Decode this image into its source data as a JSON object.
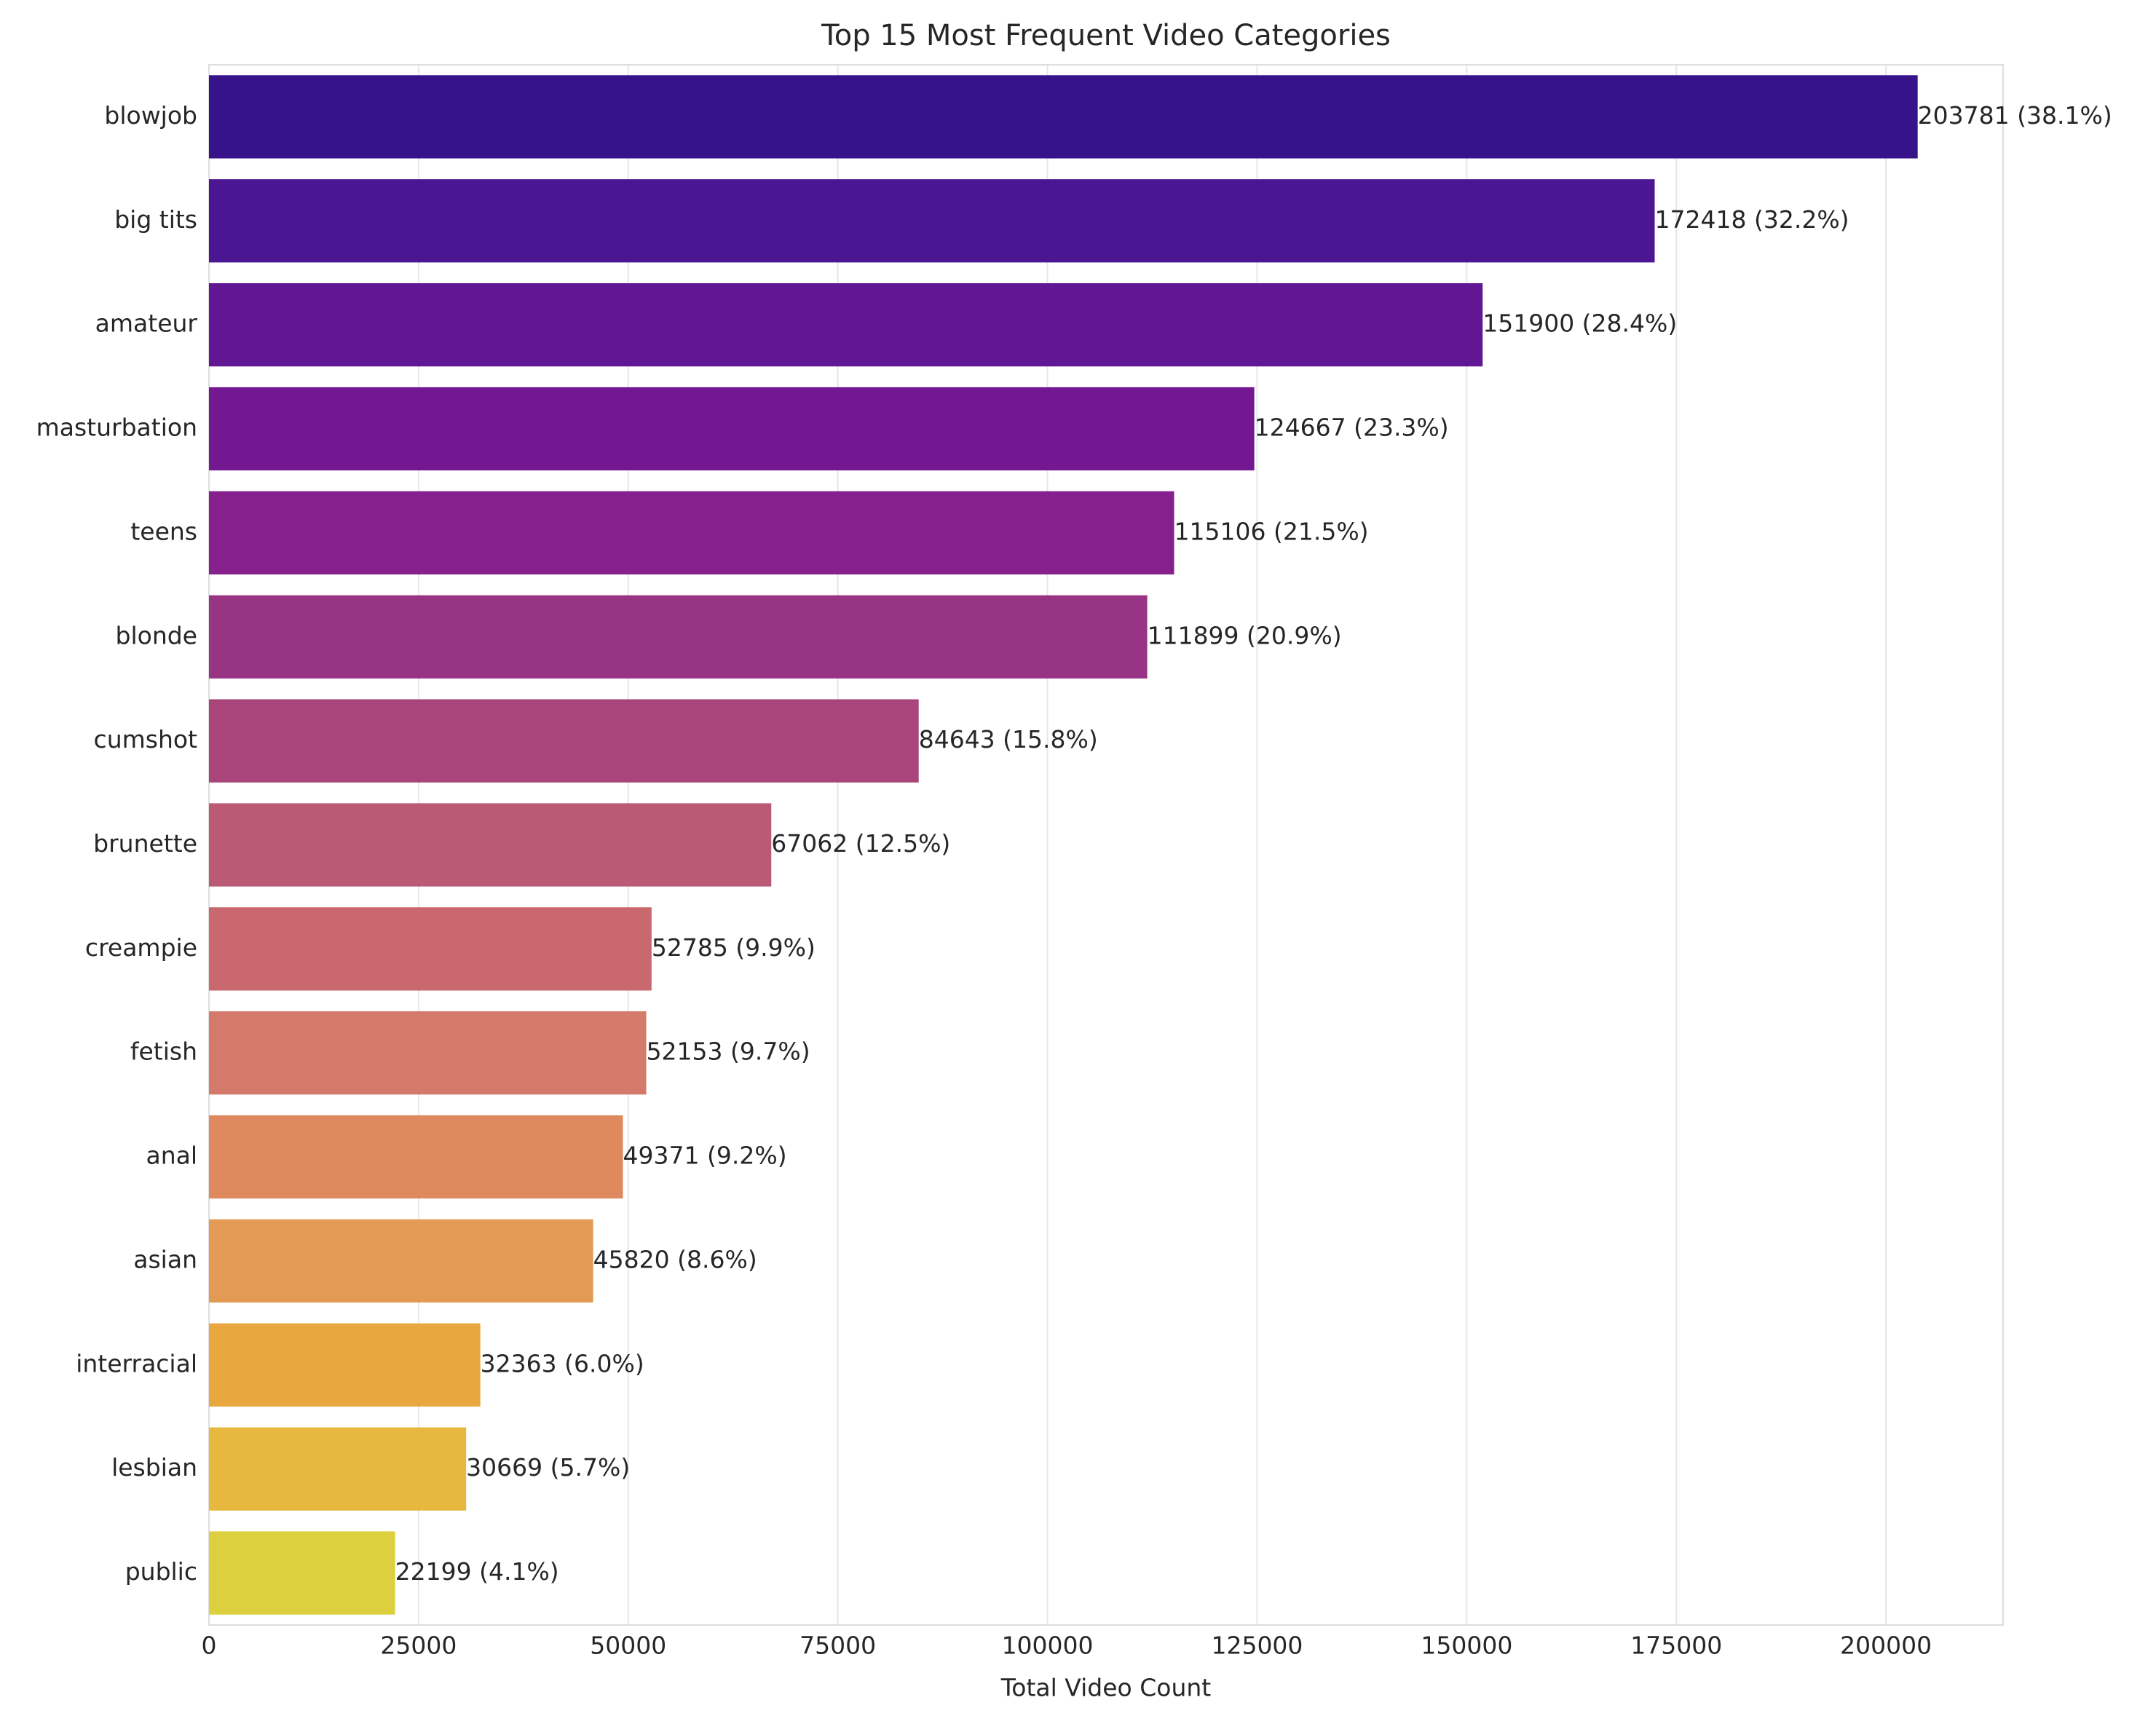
{
  "chart_data": {
    "type": "barh",
    "title": "Top 15 Most Frequent Video Categories",
    "x_label": "Total Video Count",
    "categories": [
      "blowjob",
      "big tits",
      "amateur",
      "masturbation",
      "teens",
      "blonde",
      "cumshot",
      "brunette",
      "creampie",
      "fetish",
      "anal",
      "asian",
      "interracial",
      "lesbian",
      "public"
    ],
    "values": [
      203781,
      172418,
      151900,
      124667,
      115106,
      111899,
      84643,
      67062,
      52785,
      52153,
      49371,
      45820,
      32363,
      30669,
      22199
    ],
    "value_labels": [
      "203781 (38.1%)",
      "172418 (32.2%)",
      "151900 (28.4%)",
      "124667 (23.3%)",
      "115106 (21.5%)",
      "111899 (20.9%)",
      "84643 (15.8%)",
      "67062 (12.5%)",
      "52785 (9.9%)",
      "52153 (9.7%)",
      "49371 (9.2%)",
      "45820 (8.6%)",
      "32363 (6.0%)",
      "30669 (5.7%)",
      "22199 (4.1%)"
    ],
    "colors": [
      "#36138a",
      "#4c1592",
      "#611693",
      "#741892",
      "#86208c",
      "#983484",
      "#a9457a",
      "#bb5a75",
      "#c9686e",
      "#d57a6a",
      "#de8a5e",
      "#e39a55",
      "#e9a83f",
      "#e6b83e",
      "#ddd03f"
    ],
    "xlim": [
      0,
      213970
    ],
    "xticks": [
      0,
      25000,
      50000,
      75000,
      100000,
      125000,
      150000,
      175000,
      200000
    ],
    "grid": true
  }
}
